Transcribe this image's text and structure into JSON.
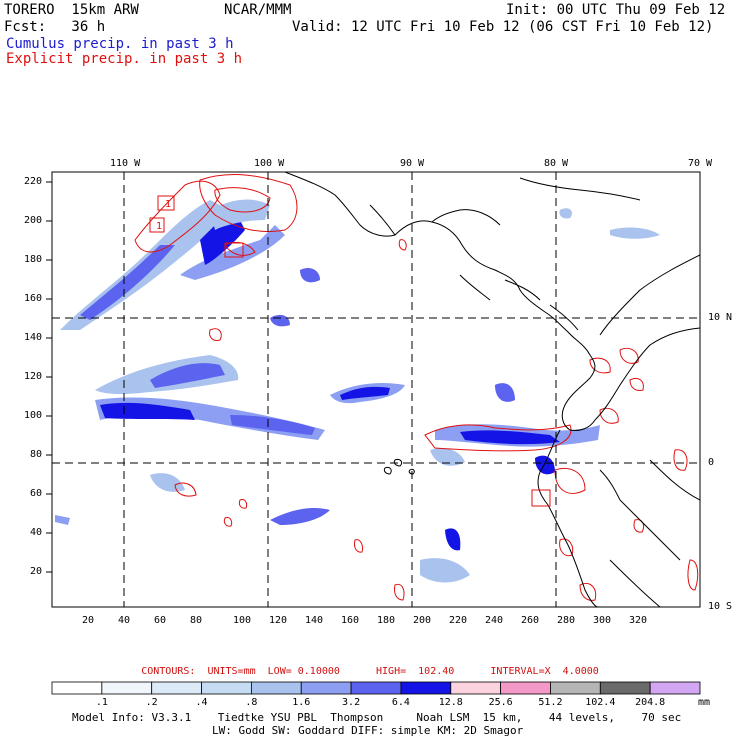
{
  "header": {
    "model": "TORERO  15km ARW",
    "org": "NCAR/MMM",
    "init": "Init: 00 UTC Thu 09 Feb 12",
    "fcst": "Fcst:   36 h",
    "valid": "Valid: 12 UTC Fri 10 Feb 12 (06 CST Fri 10 Feb 12)",
    "legend_cumulus": "Cumulus precip. in past 3 h",
    "legend_explicit": "Explicit precip. in past 3 h"
  },
  "map": {
    "lon_labels": [
      "110 W",
      "100 W",
      "90 W",
      "80 W",
      "70 W"
    ],
    "lat_labels": [
      "10 N",
      "0",
      "10 S"
    ],
    "grid_y_labels": [
      "220",
      "200",
      "180",
      "160",
      "140",
      "120",
      "100",
      "80",
      "60",
      "40",
      "20"
    ],
    "grid_x_labels": [
      "20",
      "40",
      "60",
      "80",
      "100",
      "120",
      "140",
      "160",
      "180",
      "200",
      "220",
      "240",
      "260",
      "280",
      "300",
      "320"
    ],
    "point_labels": [
      "1",
      "1"
    ]
  },
  "contour_info": {
    "label": "CONTOURS:  UNITS=mm  LOW= 0.10000      HIGH=  102.40      INTERVAL=X  4.0000"
  },
  "colorbar": {
    "units": "mm",
    "levels": [
      ".1",
      ".2",
      ".4",
      ".8",
      "1.6",
      "3.2",
      "6.4",
      "12.8",
      "25.6",
      "51.2",
      "102.4",
      "204.8"
    ],
    "colors": [
      "#ffffff",
      "#f0f6fb",
      "#dbeaf6",
      "#c6dcf2",
      "#aac3ee",
      "#8c9ff2",
      "#5c63ee",
      "#1414e6",
      "#fbd3df",
      "#f498c7",
      "#b5b5b5",
      "#6a6a6a",
      "#d3a6f3"
    ]
  },
  "footer": {
    "line1": "Model Info: V3.3.1    Tiedtke YSU PBL  Thompson     Noah LSM  15 km,    44 levels,    70 sec",
    "line2": "LW: Godd SW: Goddard DIFF: simple KM: 2D Smagor"
  }
}
